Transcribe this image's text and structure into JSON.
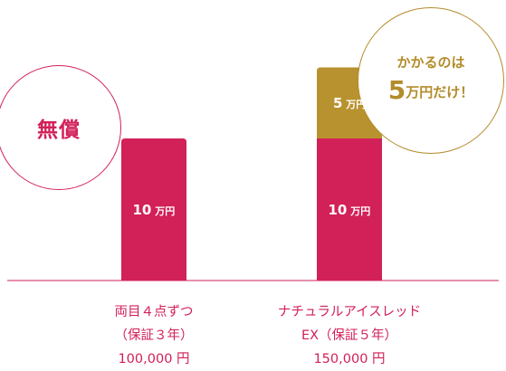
{
  "chart_data": {
    "type": "bar",
    "stacked": true,
    "categories": [
      [
        "両目４点ずつ",
        "（保証３年）",
        "100,000 円"
      ],
      [
        "ナチュラルアイスレッド",
        "EX（保証５年）",
        "150,000 円"
      ]
    ],
    "series": [
      {
        "values": [
          10,
          10
        ],
        "color": "#d22058",
        "value_labels": [
          "10 万円",
          "10 万円"
        ]
      },
      {
        "values": [
          0,
          5
        ],
        "color": "#b8922f",
        "value_labels": [
          "",
          "5 万円"
        ]
      }
    ],
    "ylim": [
      0,
      15
    ],
    "grid": false,
    "axis_color": "#d22058"
  },
  "annotations": {
    "left": {
      "text": "無償",
      "color": "#d22058"
    },
    "right": {
      "line1": "かかるのは",
      "number": "5",
      "line2_rest": "万円だけ！",
      "color": "#b38c2a"
    }
  }
}
